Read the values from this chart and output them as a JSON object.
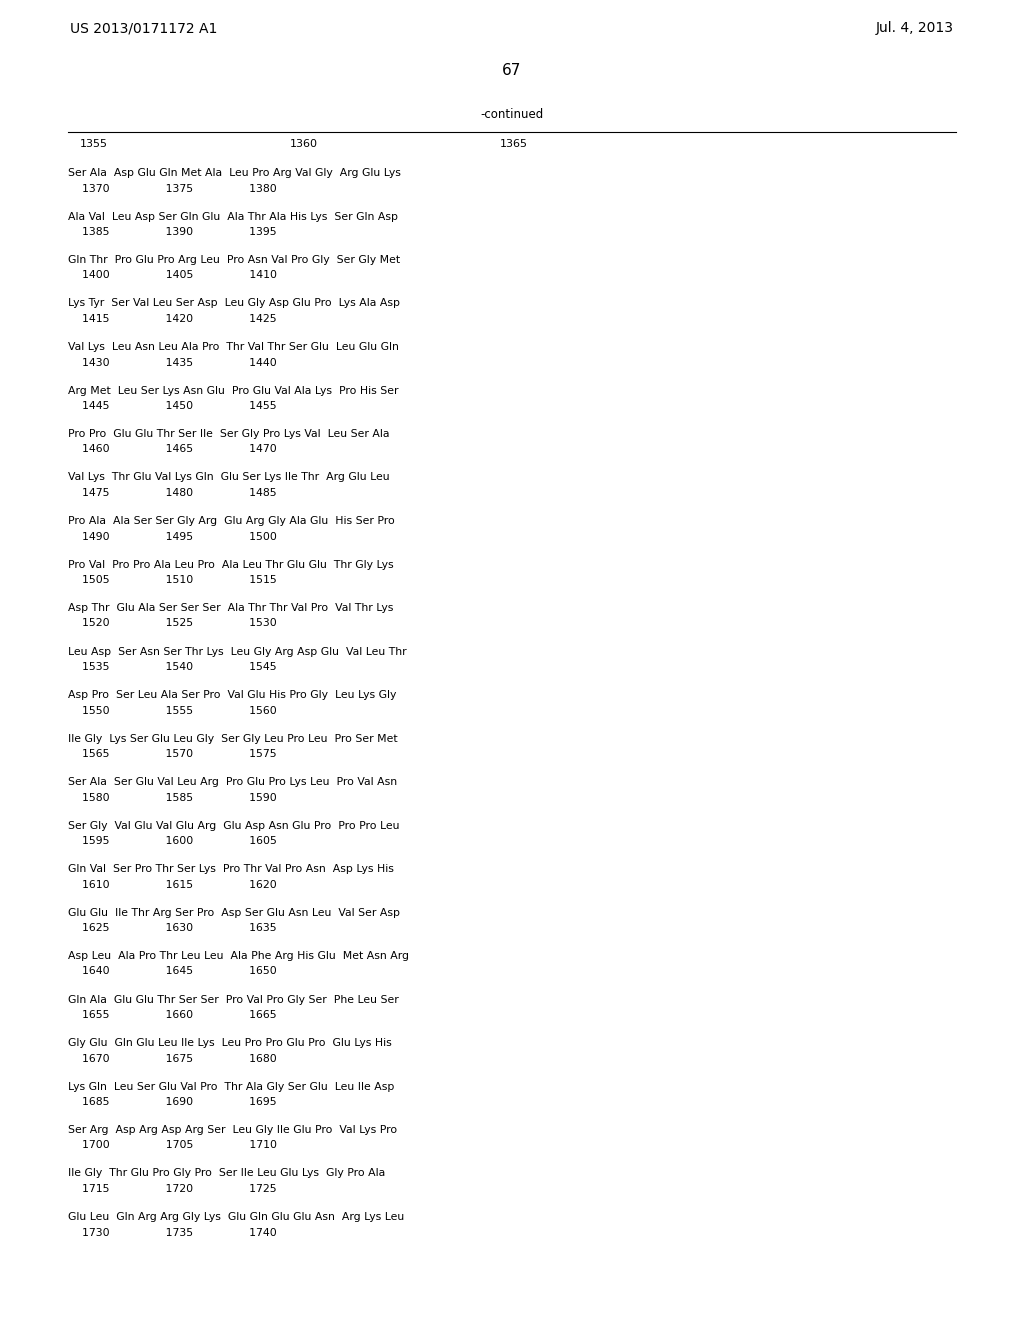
{
  "header_left": "US 2013/0171172 A1",
  "header_right": "Jul. 4, 2013",
  "page_number": "67",
  "continued_label": "-continued",
  "background_color": "#ffffff",
  "text_color": "#000000",
  "number_row": [
    "1355",
    "1360",
    "1365"
  ],
  "sequence_rows": [
    {
      "line1": "Ser Ala  Asp Glu Gln Met Ala  Leu Pro Arg Val Gly  Arg Glu Lys",
      "line2": "    1370                1375                1380"
    },
    {
      "line1": "Ala Val  Leu Asp Ser Gln Glu  Ala Thr Ala His Lys  Ser Gln Asp",
      "line2": "    1385                1390                1395"
    },
    {
      "line1": "Gln Thr  Pro Glu Pro Arg Leu  Pro Asn Val Pro Gly  Ser Gly Met",
      "line2": "    1400                1405                1410"
    },
    {
      "line1": "Lys Tyr  Ser Val Leu Ser Asp  Leu Gly Asp Glu Pro  Lys Ala Asp",
      "line2": "    1415                1420                1425"
    },
    {
      "line1": "Val Lys  Leu Asn Leu Ala Pro  Thr Val Thr Ser Glu  Leu Glu Gln",
      "line2": "    1430                1435                1440"
    },
    {
      "line1": "Arg Met  Leu Ser Lys Asn Glu  Pro Glu Val Ala Lys  Pro His Ser",
      "line2": "    1445                1450                1455"
    },
    {
      "line1": "Pro Pro  Glu Glu Thr Ser Ile  Ser Gly Pro Lys Val  Leu Ser Ala",
      "line2": "    1460                1465                1470"
    },
    {
      "line1": "Val Lys  Thr Glu Val Lys Gln  Glu Ser Lys Ile Thr  Arg Glu Leu",
      "line2": "    1475                1480                1485"
    },
    {
      "line1": "Pro Ala  Ala Ser Ser Gly Arg  Glu Arg Gly Ala Glu  His Ser Pro",
      "line2": "    1490                1495                1500"
    },
    {
      "line1": "Pro Val  Pro Pro Ala Leu Pro  Ala Leu Thr Glu Glu  Thr Gly Lys",
      "line2": "    1505                1510                1515"
    },
    {
      "line1": "Asp Thr  Glu Ala Ser Ser Ser  Ala Thr Thr Val Pro  Val Thr Lys",
      "line2": "    1520                1525                1530"
    },
    {
      "line1": "Leu Asp  Ser Asn Ser Thr Lys  Leu Gly Arg Asp Glu  Val Leu Thr",
      "line2": "    1535                1540                1545"
    },
    {
      "line1": "Asp Pro  Ser Leu Ala Ser Pro  Val Glu His Pro Gly  Leu Lys Gly",
      "line2": "    1550                1555                1560"
    },
    {
      "line1": "Ile Gly  Lys Ser Glu Leu Gly  Ser Gly Leu Pro Leu  Pro Ser Met",
      "line2": "    1565                1570                1575"
    },
    {
      "line1": "Ser Ala  Ser Glu Val Leu Arg  Pro Glu Pro Lys Leu  Pro Val Asn",
      "line2": "    1580                1585                1590"
    },
    {
      "line1": "Ser Gly  Val Glu Val Glu Arg  Glu Asp Asn Glu Pro  Pro Pro Leu",
      "line2": "    1595                1600                1605"
    },
    {
      "line1": "Gln Val  Ser Pro Thr Ser Lys  Pro Thr Val Pro Asn  Asp Lys His",
      "line2": "    1610                1615                1620"
    },
    {
      "line1": "Glu Glu  Ile Thr Arg Ser Pro  Asp Ser Glu Asn Leu  Val Ser Asp",
      "line2": "    1625                1630                1635"
    },
    {
      "line1": "Asp Leu  Ala Pro Thr Leu Leu  Ala Phe Arg His Glu  Met Asn Arg",
      "line2": "    1640                1645                1650"
    },
    {
      "line1": "Gln Ala  Glu Glu Thr Ser Ser  Pro Val Pro Gly Ser  Phe Leu Ser",
      "line2": "    1655                1660                1665"
    },
    {
      "line1": "Gly Glu  Gln Glu Leu Ile Lys  Leu Pro Pro Glu Pro  Glu Lys His",
      "line2": "    1670                1675                1680"
    },
    {
      "line1": "Lys Gln  Leu Ser Glu Val Pro  Thr Ala Gly Ser Glu  Leu Ile Asp",
      "line2": "    1685                1690                1695"
    },
    {
      "line1": "Ser Arg  Asp Arg Asp Arg Ser  Leu Gly Ile Glu Pro  Val Lys Pro",
      "line2": "    1700                1705                1710"
    },
    {
      "line1": "Ile Gly  Thr Glu Pro Gly Pro  Ser Ile Leu Glu Lys  Gly Pro Ala",
      "line2": "    1715                1720                1725"
    },
    {
      "line1": "Glu Leu  Gln Arg Arg Gly Lys  Glu Gln Glu Glu Asn  Arg Lys Leu",
      "line2": "    1730                1735                1740"
    }
  ]
}
